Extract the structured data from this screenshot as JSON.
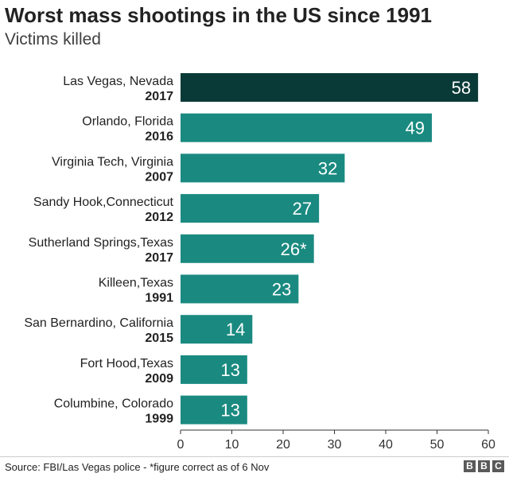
{
  "header": {
    "title": "Worst mass shootings in the US since 1991",
    "subtitle": "Victims killed"
  },
  "footer": {
    "source": "Source: FBI/Las Vegas police - *figure correct as of 6 Nov",
    "logo_letters": [
      "B",
      "B",
      "C"
    ]
  },
  "colors": {
    "highlight_bar": "#0a3a37",
    "bar": "#1a8a80",
    "bar_label": "#ffffff",
    "axis": "#333333"
  },
  "chart_data": {
    "type": "bar",
    "orientation": "horizontal",
    "title": "Worst mass shootings in the US since 1991",
    "subtitle": "Victims killed",
    "categories": [
      {
        "place": "Las Vegas, Nevada",
        "year": "2017"
      },
      {
        "place": "Orlando, Florida",
        "year": "2016"
      },
      {
        "place": "Virginia Tech, Virginia",
        "year": "2007"
      },
      {
        "place": "Sandy Hook,Connecticut",
        "year": "2012"
      },
      {
        "place": "Sutherland Springs,Texas",
        "year": "2017"
      },
      {
        "place": "Killeen,Texas",
        "year": "1991"
      },
      {
        "place": "San Bernardino, California",
        "year": "2015"
      },
      {
        "place": "Fort Hood,Texas",
        "year": "2009"
      },
      {
        "place": "Columbine, Colorado",
        "year": "1999"
      }
    ],
    "values": [
      58,
      49,
      32,
      27,
      26,
      23,
      14,
      13,
      13
    ],
    "value_labels": [
      "58",
      "49",
      "32",
      "27",
      "26*",
      "23",
      "14",
      "13",
      "13"
    ],
    "highlight_index": 0,
    "xlim": [
      0,
      60
    ],
    "xticks": [
      0,
      10,
      20,
      30,
      40,
      50,
      60
    ],
    "grid": false
  }
}
